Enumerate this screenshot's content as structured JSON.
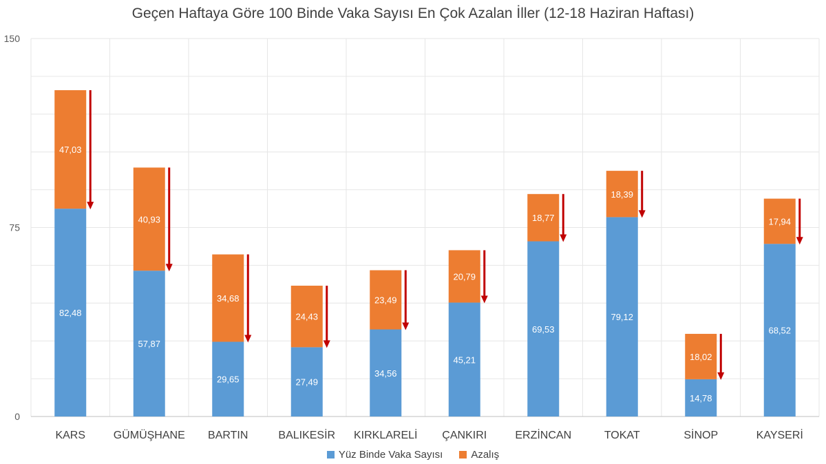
{
  "chart_data": {
    "type": "bar",
    "stacked": true,
    "title": "Geçen Haftaya Göre 100 Binde Vaka Sayısı En Çok Azalan İller (12-18 Haziran Haftası)",
    "categories": [
      "KARS",
      "GÜMÜŞHANE",
      "BARTIN",
      "BALIKESİR",
      "KIRKLARELİ",
      "ÇANKIRI",
      "ERZİNCAN",
      "TOKAT",
      "SİNOP",
      "KAYSERİ"
    ],
    "series": [
      {
        "name": "Yüz Binde Vaka Sayısı",
        "color": "#5b9bd5",
        "values": [
          82.48,
          57.87,
          29.65,
          27.49,
          34.56,
          45.21,
          69.53,
          79.12,
          14.78,
          68.52
        ],
        "labels": [
          "82,48",
          "57,87",
          "29,65",
          "27,49",
          "34,56",
          "45,21",
          "69,53",
          "79,12",
          "14,78",
          "68,52"
        ]
      },
      {
        "name": "Azalış",
        "color": "#ed7d31",
        "values": [
          47.03,
          40.93,
          34.68,
          24.43,
          23.49,
          20.79,
          18.77,
          18.39,
          18.02,
          17.94
        ],
        "labels": [
          "47,03",
          "40,93",
          "34,68",
          "24,43",
          "23,49",
          "20,79",
          "18,77",
          "18,39",
          "18,02",
          "17,94"
        ]
      }
    ],
    "ylim": [
      0,
      150
    ],
    "yticks": [
      "0",
      "75",
      "150"
    ],
    "ytick_values": [
      0,
      75,
      150
    ],
    "grid": true,
    "legend_position": "bottom",
    "arrow_color": "#c00000"
  }
}
